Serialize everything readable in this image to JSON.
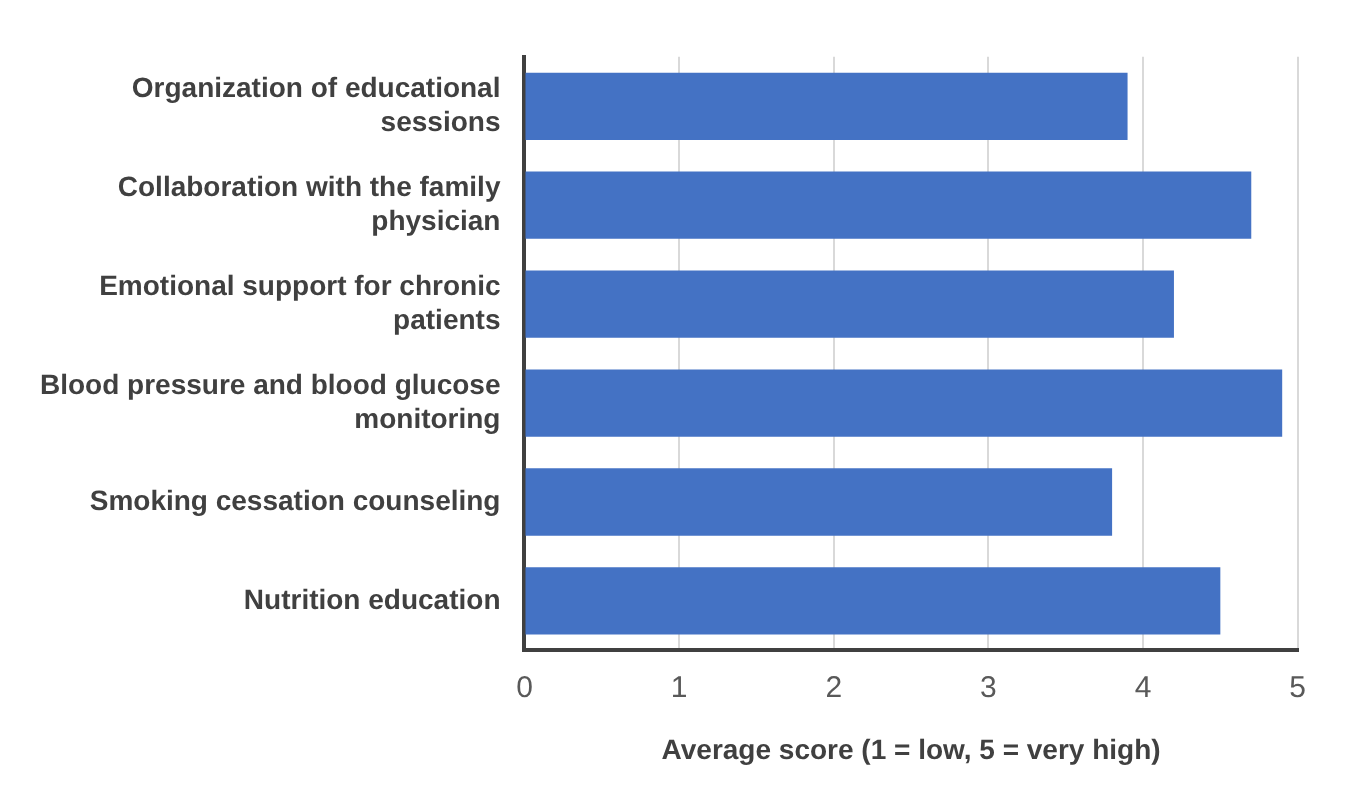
{
  "chart_data": {
    "type": "bar",
    "orientation": "horizontal",
    "xlabel": "Average score (1 = low, 5 = very high)",
    "categories": [
      "Organization of educational sessions",
      "Collaboration with the family physician",
      "Emotional support for chronic patients",
      "Blood pressure and blood glucose monitoring",
      "Smoking cessation counseling",
      "Nutrition education"
    ],
    "values": [
      3.9,
      4.7,
      4.2,
      4.9,
      3.8,
      4.5
    ],
    "color": "#4472c4",
    "xlim": [
      0,
      5
    ],
    "xticks": [
      0,
      1,
      2,
      3,
      4,
      5
    ],
    "grid": "x",
    "legend": false
  }
}
